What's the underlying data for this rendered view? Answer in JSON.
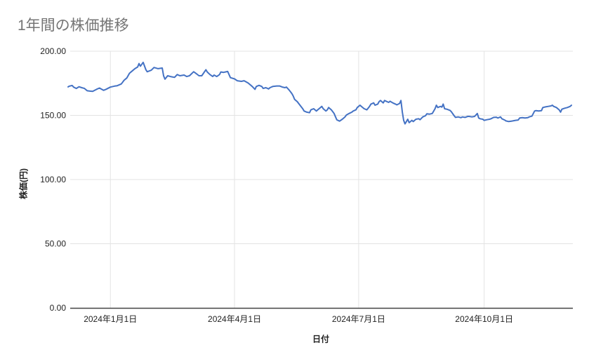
{
  "chart_data": {
    "type": "line",
    "title": "1年間の株価推移",
    "xlabel": "日付",
    "ylabel": "株価(円)",
    "legend": "none",
    "grid": true,
    "colors": {
      "title": "#757575",
      "series": "#4472C4",
      "gridline": "#e3e3e3",
      "axis_line": "#424242",
      "tick_label": "#222222",
      "background": "#ffffff"
    },
    "y_axis": {
      "min": 0,
      "max": 200,
      "ticks": [
        {
          "value": 0,
          "label": "0.00"
        },
        {
          "value": 50,
          "label": "50.00"
        },
        {
          "value": 100,
          "label": "100.00"
        },
        {
          "value": 150,
          "label": "150.00"
        },
        {
          "value": 200,
          "label": "200.00"
        }
      ]
    },
    "x_axis": {
      "range": [
        0,
        369
      ],
      "ticks": [
        {
          "day": 31,
          "label": "2024年1月1日"
        },
        {
          "day": 122,
          "label": "2024年4月1日"
        },
        {
          "day": 213,
          "label": "2024年7月1日"
        },
        {
          "day": 305,
          "label": "2024年10月1日"
        }
      ]
    },
    "series": [
      {
        "name": "株価",
        "color": "#4472C4",
        "points": [
          [
            0,
            172.2
          ],
          [
            1,
            172.8
          ],
          [
            3,
            173.3
          ],
          [
            4,
            172.0
          ],
          [
            6,
            171.0
          ],
          [
            8,
            172.3
          ],
          [
            10,
            171.6
          ],
          [
            12,
            171.0
          ],
          [
            14,
            169.2
          ],
          [
            16,
            168.9
          ],
          [
            18,
            168.7
          ],
          [
            21,
            170.4
          ],
          [
            23,
            171.3
          ],
          [
            26,
            169.5
          ],
          [
            28,
            170.4
          ],
          [
            31,
            172.0
          ],
          [
            34,
            172.8
          ],
          [
            36,
            173.1
          ],
          [
            39,
            174.5
          ],
          [
            41,
            177.3
          ],
          [
            43,
            179.1
          ],
          [
            45,
            182.8
          ],
          [
            47,
            184.6
          ],
          [
            49,
            186.4
          ],
          [
            51,
            187.7
          ],
          [
            52,
            190.4
          ],
          [
            53,
            188.3
          ],
          [
            55,
            191.3
          ],
          [
            57,
            185.6
          ],
          [
            58,
            184.0
          ],
          [
            61,
            185.2
          ],
          [
            63,
            187.3
          ],
          [
            66,
            186.4
          ],
          [
            69,
            186.9
          ],
          [
            70,
            180.9
          ],
          [
            71,
            178.2
          ],
          [
            73,
            180.9
          ],
          [
            75,
            180.3
          ],
          [
            78,
            179.6
          ],
          [
            80,
            181.8
          ],
          [
            82,
            180.9
          ],
          [
            85,
            181.4
          ],
          [
            87,
            180.3
          ],
          [
            89,
            180.9
          ],
          [
            92,
            184.0
          ],
          [
            93,
            183.3
          ],
          [
            96,
            180.9
          ],
          [
            98,
            180.9
          ],
          [
            101,
            185.6
          ],
          [
            102,
            183.8
          ],
          [
            104,
            181.8
          ],
          [
            106,
            180.3
          ],
          [
            107,
            181.4
          ],
          [
            109,
            180.3
          ],
          [
            111,
            181.8
          ],
          [
            112,
            183.8
          ],
          [
            114,
            183.5
          ],
          [
            117,
            184.2
          ],
          [
            119,
            179.4
          ],
          [
            122,
            178.4
          ],
          [
            124,
            177.0
          ],
          [
            127,
            176.5
          ],
          [
            129,
            177.0
          ],
          [
            132,
            175.2
          ],
          [
            135,
            172.5
          ],
          [
            137,
            170.3
          ],
          [
            138,
            172.5
          ],
          [
            140,
            173.4
          ],
          [
            142,
            172.5
          ],
          [
            143,
            171.0
          ],
          [
            145,
            171.6
          ],
          [
            147,
            170.6
          ],
          [
            148,
            171.6
          ],
          [
            150,
            172.5
          ],
          [
            153,
            172.9
          ],
          [
            155,
            172.9
          ],
          [
            157,
            172.1
          ],
          [
            159,
            171.6
          ],
          [
            160,
            172.1
          ],
          [
            162,
            169.8
          ],
          [
            164,
            167.0
          ],
          [
            165,
            165.2
          ],
          [
            166,
            162.5
          ],
          [
            167,
            161.6
          ],
          [
            168,
            160.7
          ],
          [
            170,
            157.9
          ],
          [
            172,
            155.2
          ],
          [
            173,
            153.4
          ],
          [
            175,
            152.5
          ],
          [
            177,
            152.1
          ],
          [
            178,
            154.3
          ],
          [
            180,
            155.2
          ],
          [
            182,
            153.4
          ],
          [
            184,
            155.2
          ],
          [
            186,
            157.0
          ],
          [
            187,
            155.2
          ],
          [
            189,
            153.4
          ],
          [
            190,
            154.3
          ],
          [
            191,
            156.1
          ],
          [
            193,
            154.3
          ],
          [
            195,
            151.5
          ],
          [
            196,
            149.0
          ],
          [
            197,
            146.5
          ],
          [
            199,
            145.5
          ],
          [
            201,
            147.0
          ],
          [
            203,
            148.8
          ],
          [
            204,
            150.3
          ],
          [
            206,
            151.5
          ],
          [
            208,
            152.5
          ],
          [
            209,
            153.4
          ],
          [
            211,
            154.3
          ],
          [
            212,
            156.1
          ],
          [
            214,
            157.9
          ],
          [
            215,
            157.0
          ],
          [
            217,
            155.2
          ],
          [
            219,
            154.3
          ],
          [
            221,
            157.0
          ],
          [
            222,
            158.8
          ],
          [
            224,
            159.7
          ],
          [
            225,
            157.9
          ],
          [
            227,
            158.8
          ],
          [
            228,
            160.7
          ],
          [
            229,
            161.6
          ],
          [
            231,
            159.7
          ],
          [
            232,
            161.6
          ],
          [
            235,
            160.1
          ],
          [
            236,
            161.0
          ],
          [
            238,
            159.7
          ],
          [
            240,
            158.8
          ],
          [
            241,
            158.2
          ],
          [
            243,
            159.3
          ],
          [
            244,
            161.6
          ],
          [
            245,
            152.5
          ],
          [
            246,
            146.1
          ],
          [
            247,
            143.4
          ],
          [
            248,
            145.2
          ],
          [
            249,
            147.0
          ],
          [
            250,
            144.3
          ],
          [
            252,
            146.1
          ],
          [
            253,
            145.2
          ],
          [
            255,
            147.0
          ],
          [
            257,
            147.4
          ],
          [
            258,
            146.6
          ],
          [
            260,
            148.8
          ],
          [
            262,
            149.7
          ],
          [
            263,
            151.2
          ],
          [
            265,
            151.0
          ],
          [
            267,
            151.5
          ],
          [
            269,
            155.2
          ],
          [
            270,
            157.9
          ],
          [
            271,
            156.1
          ],
          [
            273,
            157.0
          ],
          [
            274,
            156.4
          ],
          [
            275,
            158.8
          ],
          [
            276,
            155.2
          ],
          [
            278,
            154.7
          ],
          [
            280,
            153.9
          ],
          [
            281,
            152.8
          ],
          [
            283,
            149.7
          ],
          [
            284,
            148.4
          ],
          [
            286,
            148.8
          ],
          [
            288,
            148.2
          ],
          [
            289,
            148.8
          ],
          [
            291,
            148.4
          ],
          [
            293,
            149.2
          ],
          [
            294,
            149.2
          ],
          [
            296,
            148.8
          ],
          [
            298,
            149.2
          ],
          [
            300,
            151.5
          ],
          [
            301,
            147.9
          ],
          [
            302,
            147.4
          ],
          [
            304,
            147.0
          ],
          [
            305,
            146.1
          ],
          [
            307,
            146.6
          ],
          [
            309,
            147.0
          ],
          [
            310,
            147.4
          ],
          [
            312,
            148.4
          ],
          [
            314,
            148.6
          ],
          [
            315,
            147.9
          ],
          [
            317,
            148.8
          ],
          [
            318,
            147.4
          ],
          [
            320,
            146.4
          ],
          [
            321,
            145.7
          ],
          [
            323,
            145.2
          ],
          [
            325,
            145.5
          ],
          [
            326,
            145.7
          ],
          [
            328,
            146.1
          ],
          [
            330,
            146.4
          ],
          [
            331,
            147.9
          ],
          [
            333,
            148.2
          ],
          [
            335,
            147.9
          ],
          [
            337,
            148.2
          ],
          [
            338,
            148.8
          ],
          [
            340,
            149.4
          ],
          [
            342,
            153.4
          ],
          [
            343,
            153.7
          ],
          [
            345,
            153.4
          ],
          [
            347,
            153.7
          ],
          [
            348,
            156.1
          ],
          [
            350,
            156.6
          ],
          [
            352,
            157.0
          ],
          [
            354,
            157.4
          ],
          [
            355,
            157.9
          ],
          [
            356,
            157.0
          ],
          [
            358,
            156.1
          ],
          [
            360,
            154.3
          ],
          [
            361,
            152.5
          ],
          [
            362,
            154.8
          ],
          [
            364,
            155.6
          ],
          [
            366,
            156.1
          ],
          [
            368,
            157.0
          ],
          [
            369,
            157.9
          ]
        ]
      }
    ]
  }
}
